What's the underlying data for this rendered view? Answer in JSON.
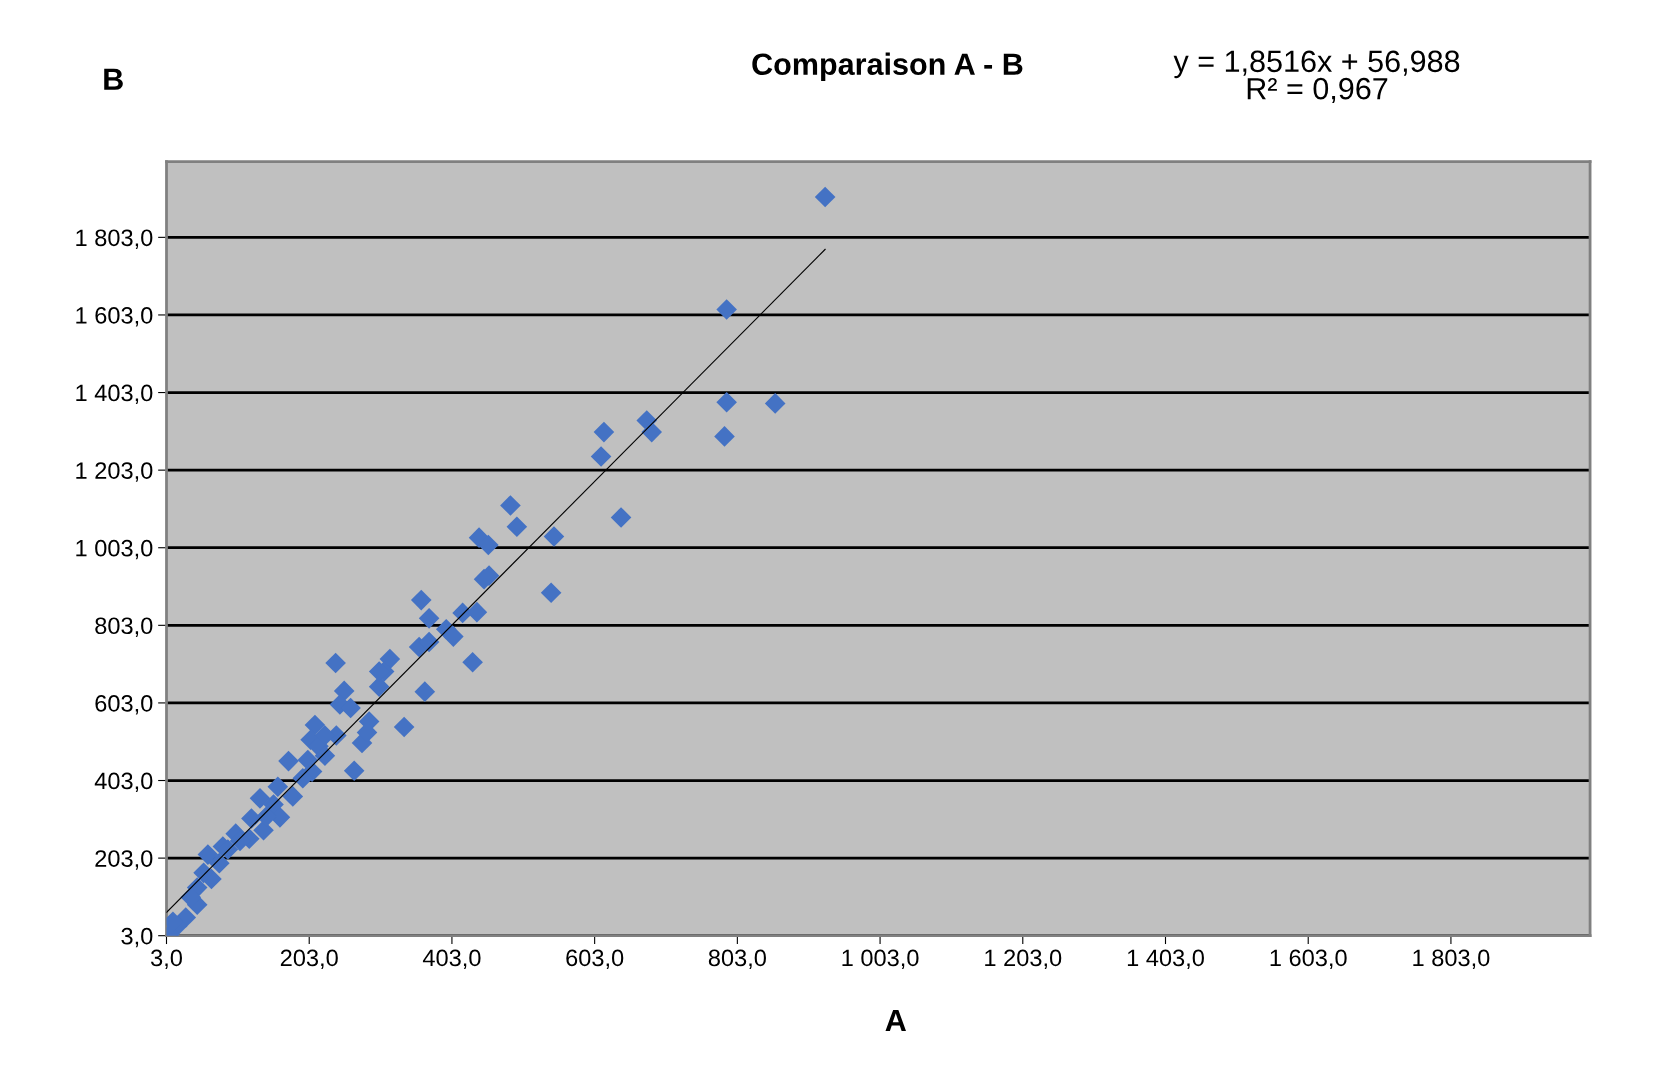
{
  "chart_data": {
    "type": "scatter",
    "title": "Comparaison A - B",
    "xlabel": "A",
    "ylabel": "B",
    "annotations": [
      "y = 1,8516x + 56,988\nR² = 0,967"
    ],
    "grid": "y",
    "xlim": [
      3,
      1998
    ],
    "ylim": [
      3,
      1998
    ],
    "xticks": [
      {
        "value": 3,
        "label": "3,0"
      },
      {
        "value": 203,
        "label": "203,0"
      },
      {
        "value": 403,
        "label": "403,0"
      },
      {
        "value": 603,
        "label": "603,0"
      },
      {
        "value": 803,
        "label": "803,0"
      },
      {
        "value": 1003,
        "label": "1 003,0"
      },
      {
        "value": 1203,
        "label": "1 203,0"
      },
      {
        "value": 1403,
        "label": "1 403,0"
      },
      {
        "value": 1603,
        "label": "1 603,0"
      },
      {
        "value": 1803,
        "label": "1 803,0"
      }
    ],
    "yticks": [
      {
        "value": 3,
        "label": "3,0"
      },
      {
        "value": 203,
        "label": "203,0"
      },
      {
        "value": 403,
        "label": "403,0"
      },
      {
        "value": 603,
        "label": "603,0"
      },
      {
        "value": 803,
        "label": "803,0"
      },
      {
        "value": 1003,
        "label": "1 003,0"
      },
      {
        "value": 1203,
        "label": "1 203,0"
      },
      {
        "value": 1403,
        "label": "1 403,0"
      },
      {
        "value": 1603,
        "label": "1 603,0"
      },
      {
        "value": 1803,
        "label": "1 803,0"
      }
    ],
    "series": [
      {
        "marker": "diamond",
        "color": "#4472c4",
        "x": [
          926,
          788,
          788,
          856,
          785,
          616,
          612,
          676,
          683,
          640,
          485,
          494,
          441,
          454,
          546,
          448,
          455,
          542,
          360,
          371,
          418,
          438,
          395,
          405,
          357,
          371,
          432,
          316,
          308,
          365,
          240,
          301,
          252,
          246,
          261,
          336,
          287,
          277,
          266,
          284,
          211,
          205,
          216,
          241,
          225,
          207,
          174,
          194,
          159,
          180,
          134,
          153,
          162,
          122,
          119,
          139,
          100,
          82,
          61,
          77,
          66,
          46,
          46,
          30,
          18,
          7,
          12,
          106,
          89,
          55,
          37,
          143,
          201,
          225,
          301
        ],
        "values": [
          1907,
          1617,
          1378,
          1375,
          1290,
          1301,
          1238,
          1331,
          1301,
          1081,
          1112,
          1057,
          1029,
          1010,
          1032,
          922,
          931,
          887,
          868,
          821,
          835,
          837,
          793,
          774,
          747,
          760,
          708,
          716,
          684,
          632,
          706,
          645,
          634,
          599,
          590,
          541,
          555,
          500,
          428,
          527,
          546,
          508,
          491,
          519,
          467,
          426,
          453,
          409,
          387,
          362,
          357,
          341,
          308,
          305,
          253,
          275,
          266,
          233,
          212,
          190,
          149,
          127,
          83,
          50,
          28,
          6,
          39,
          247,
          225,
          165,
          102,
          310,
          456,
          519,
          684
        ]
      },
      {
        "type": "line",
        "marker": "none",
        "color": "#000000",
        "x": [
          3,
          926
        ],
        "values": [
          63,
          1772
        ]
      }
    ]
  }
}
